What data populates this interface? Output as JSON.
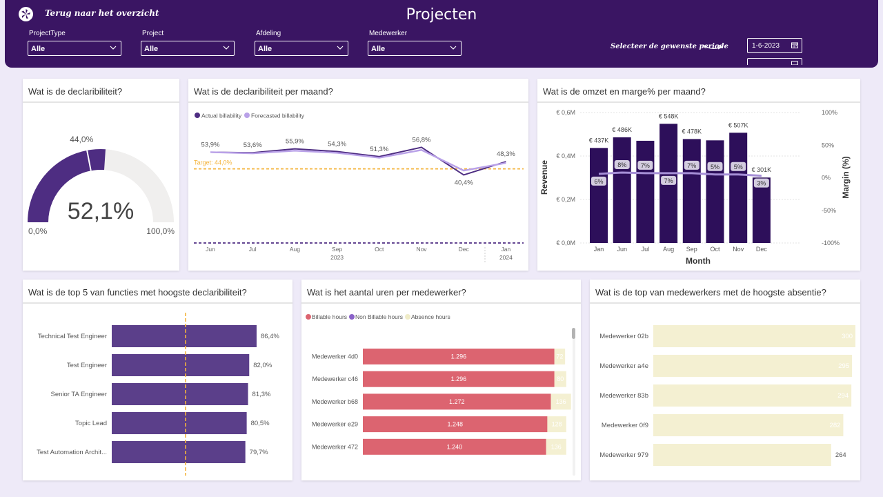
{
  "header": {
    "back_label": "Terug naar het overzicht",
    "title": "Projecten",
    "filters": [
      {
        "label": "ProjectType",
        "value": "Alle"
      },
      {
        "label": "Project",
        "value": "Alle"
      },
      {
        "label": "Afdeling",
        "value": "Alle"
      },
      {
        "label": "Medewerker",
        "value": "Alle"
      }
    ],
    "period_label": "Selecteer de  gewenste periode",
    "start_date": "1-6-2023"
  },
  "colors": {
    "header_bg": "#3a1563",
    "actual": "#4e2d82",
    "forecast": "#b9a1e8",
    "target": "#f4b43c",
    "revenue": "#2d0f5a",
    "billable": "#dc6470",
    "absence": "#f4f0d2"
  },
  "chart_data": [
    {
      "type": "gauge",
      "title": "Wat is de declaribiliteit?",
      "value": 52.1,
      "value_label": "52,1%",
      "target": 44.0,
      "target_label": "44,0%",
      "min_label": "0,0%",
      "max_label": "100,0%",
      "range": [
        0,
        100
      ]
    },
    {
      "type": "line",
      "title": "Wat is de declaribiliteit per maand?",
      "legend": [
        "Actual billability",
        "Forecasted billability"
      ],
      "categories": [
        "Jun",
        "Jul",
        "Aug",
        "Sep",
        "Oct",
        "Nov",
        "Dec",
        "Jan"
      ],
      "year_labels": [
        {
          "after": "Sep",
          "label": "2023"
        },
        {
          "after": "Jan",
          "label": "2024"
        }
      ],
      "series": [
        {
          "name": "Actual billability",
          "values": [
            53.9,
            53.6,
            55.9,
            54.3,
            51.3,
            56.8,
            40.4,
            48.3
          ],
          "labels": [
            "53,9%",
            "53,6%",
            "55,9%",
            "54,3%",
            "51,3%",
            "56,8%",
            "40,4%",
            "48,3%"
          ]
        },
        {
          "name": "Forecasted billability",
          "values": [
            53.9,
            53.2,
            54.8,
            53.5,
            50.6,
            55.2,
            43.0,
            47.5
          ]
        }
      ],
      "target": 44.0,
      "target_label": "Target: 44,0%",
      "lower_reference": 0,
      "ylim": [
        0,
        75
      ]
    },
    {
      "type": "bar",
      "title": "Wat is de omzet en marge% per maand?",
      "categories": [
        "Jan",
        "Jun",
        "Jul",
        "Aug",
        "Sep",
        "Oct",
        "Nov",
        "Dec"
      ],
      "revenue_values": [
        437,
        486,
        470,
        548,
        478,
        472,
        507,
        301
      ],
      "revenue_labels": [
        "€ 437K",
        "€ 486K",
        "",
        "€ 548K",
        "€ 478K",
        "",
        "€ 507K",
        "€ 301K"
      ],
      "margin_values": [
        6,
        8,
        7,
        7,
        7,
        5,
        5,
        3
      ],
      "margin_labels": [
        "6%",
        "8%",
        "7%",
        "7%",
        "7%",
        "5%",
        "5%",
        "3%"
      ],
      "yticks": [
        "€ 0,0M",
        "€ 0,2M",
        "€ 0,4M",
        "€ 0,6M"
      ],
      "y2ticks": [
        "100%",
        "50%",
        "0%",
        "-50%",
        "-100%"
      ],
      "ylim": [
        0,
        600
      ],
      "y2lim": [
        -100,
        100
      ],
      "xlabel": "Month",
      "ylabel": "Revenue",
      "y2label": "Margin (%)"
    },
    {
      "type": "bar",
      "orientation": "horizontal",
      "title": "Wat is de top 5 van functies met hoogste declaribiliteit?",
      "categories": [
        "Technical Test Engineer",
        "Test Engineer",
        "Senior TA Engineer",
        "Topic Lead",
        "Test Automation Archit..."
      ],
      "values": [
        86.4,
        82.0,
        81.3,
        80.5,
        79.7
      ],
      "labels": [
        "86,4%",
        "82,0%",
        "81,3%",
        "80,5%",
        "79,7%"
      ],
      "reference": 44.0,
      "xlim": [
        0,
        100
      ]
    },
    {
      "type": "bar",
      "orientation": "horizontal",
      "stacked": true,
      "title": "Wat is het aantal uren per medewerker?",
      "legend": [
        "Billable hours",
        "Non Billable hours",
        "Absence hours"
      ],
      "categories": [
        "Medewerker 4d0",
        "Medewerker c46",
        "Medewerker b68",
        "Medewerker e29",
        "Medewerker 472"
      ],
      "series": [
        {
          "name": "Billable hours",
          "values": [
            1296,
            1296,
            1272,
            1248,
            1240
          ],
          "labels": [
            "1.296",
            "1.296",
            "1.272",
            "1.248",
            "1.240"
          ]
        },
        {
          "name": "Non Billable hours",
          "values": [
            0,
            0,
            0,
            0,
            0
          ]
        },
        {
          "name": "Absence hours",
          "values": [
            72,
            80,
            136,
            128,
            136
          ],
          "labels": [
            "72",
            "80",
            "136",
            "128",
            "136"
          ]
        }
      ],
      "xlim": [
        0,
        1400
      ]
    },
    {
      "type": "bar",
      "orientation": "horizontal",
      "title": "Wat is de top van medewerkers met de hoogste absentie?",
      "categories": [
        "Medewerker 02b",
        "Medewerker a4e",
        "Medewerker 83b",
        "Medewerker 0f9",
        "Medewerker 979"
      ],
      "values": [
        300,
        295,
        294,
        282,
        264
      ],
      "labels": [
        "300",
        "295",
        "294",
        "282",
        "264"
      ],
      "xlim": [
        0,
        300
      ]
    }
  ]
}
